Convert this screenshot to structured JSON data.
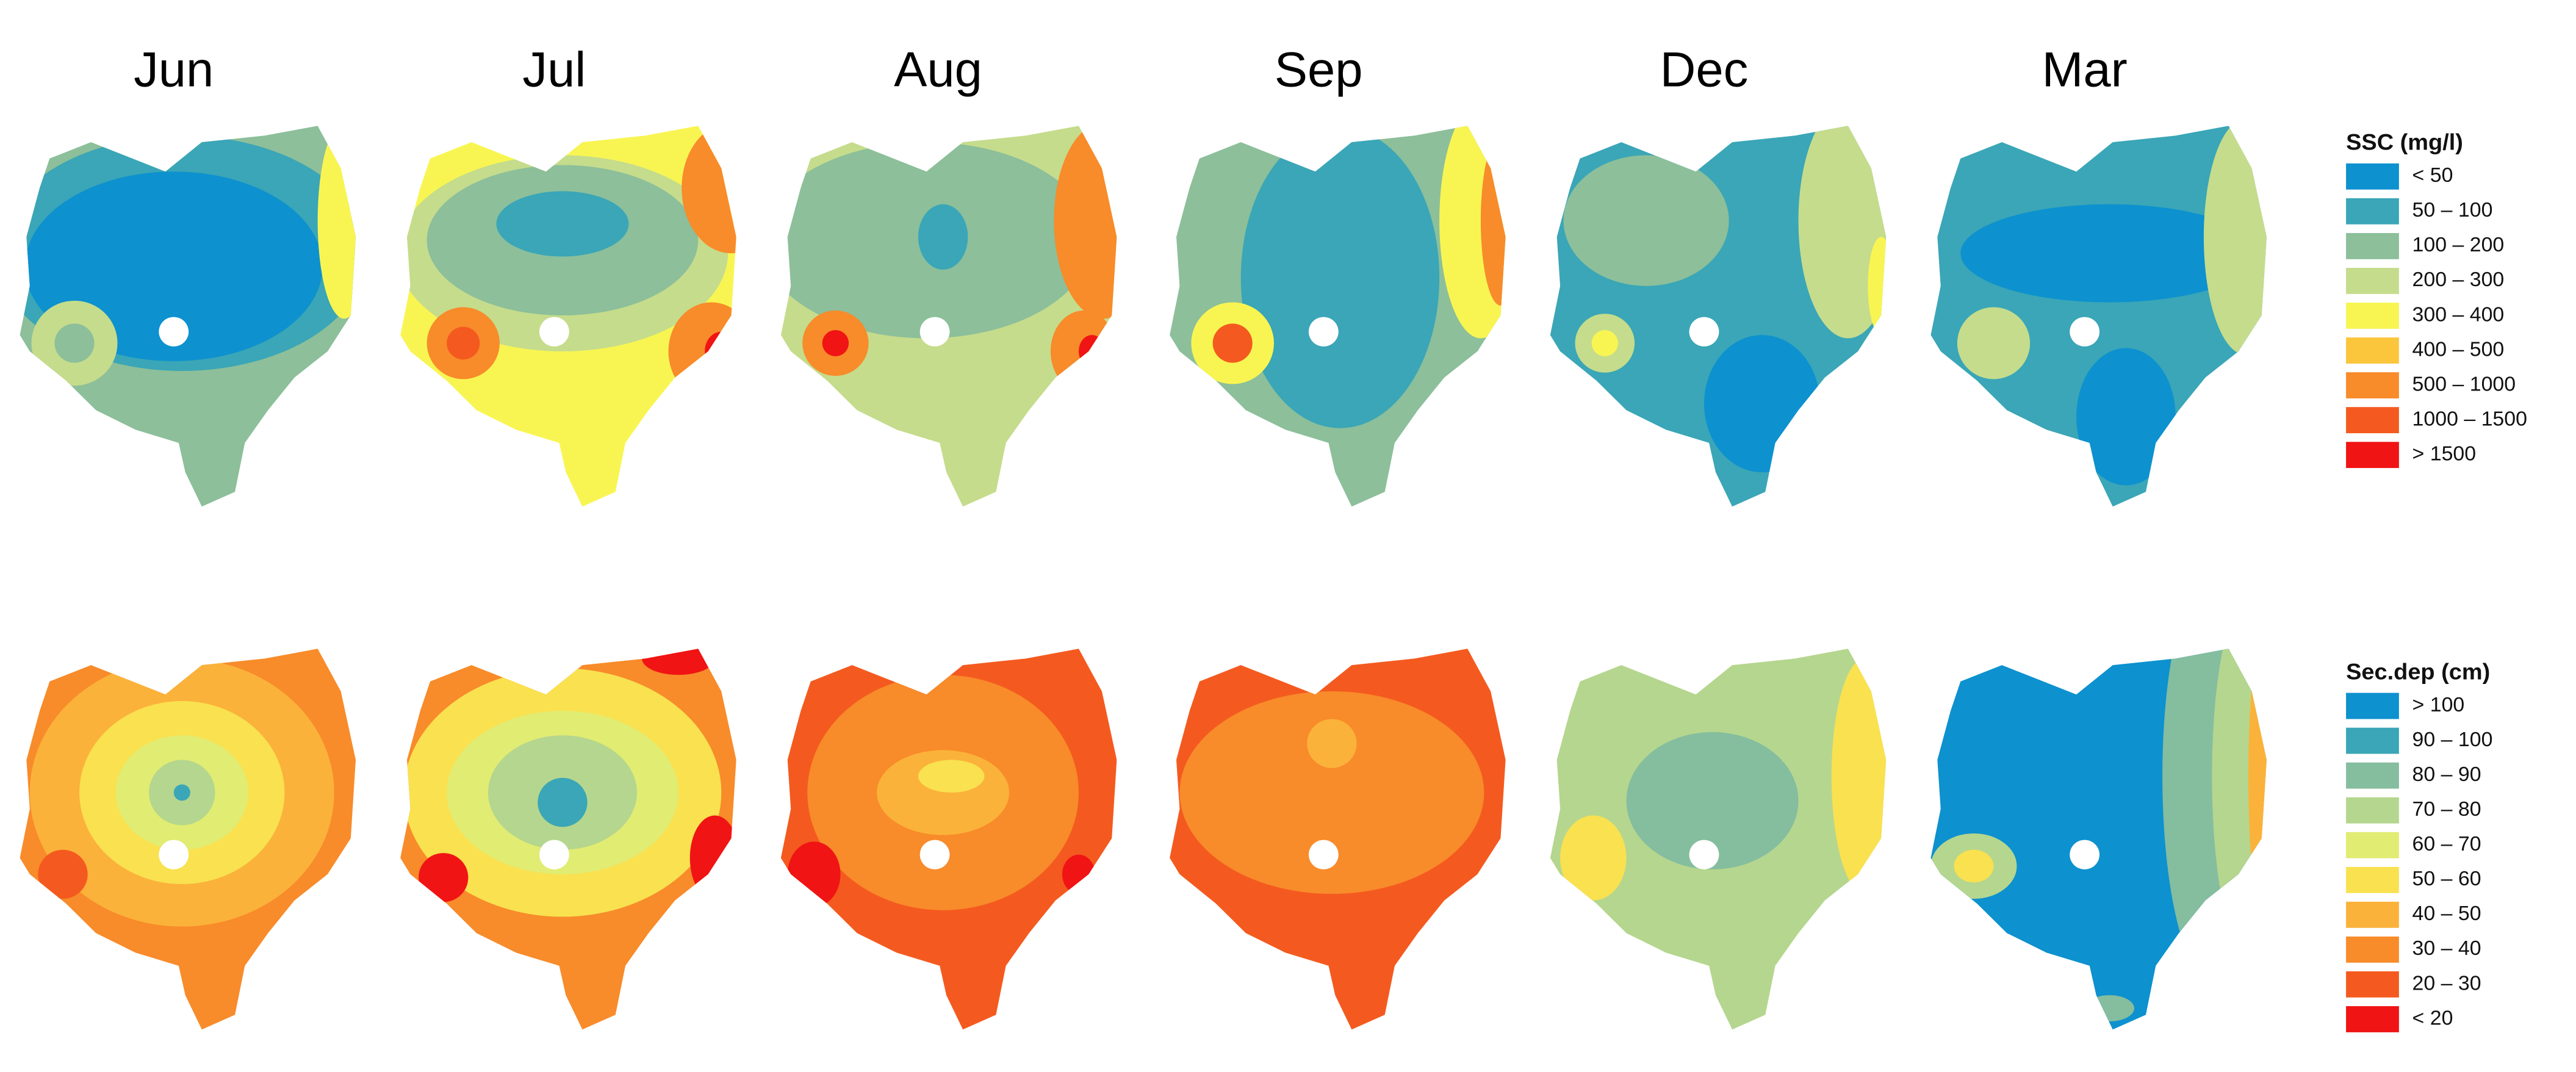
{
  "months": [
    "Jun",
    "Jul",
    "Aug",
    "Sep",
    "Dec",
    "Mar"
  ],
  "legends": [
    {
      "title": "SSC (mg/l)",
      "items": [
        {
          "label": "< 50",
          "color": "#0d91cf"
        },
        {
          "label": "50 – 100",
          "color": "#3aa6b7"
        },
        {
          "label": "100 – 200",
          "color": "#8cbf9a"
        },
        {
          "label": "200 – 300",
          "color": "#c5dc8c"
        },
        {
          "label": "300 – 400",
          "color": "#f8f552"
        },
        {
          "label": "400 – 500",
          "color": "#fbc63c"
        },
        {
          "label": "500 – 1000",
          "color": "#f88b2a"
        },
        {
          "label": "1000 – 1500",
          "color": "#f45a1f"
        },
        {
          "label": "> 1500",
          "color": "#f01414"
        }
      ]
    },
    {
      "title": "Sec.dep (cm)",
      "items": [
        {
          "label": "> 100",
          "color": "#0d91cf"
        },
        {
          "label": "90 – 100",
          "color": "#3aa6b7"
        },
        {
          "label": "80 – 90",
          "color": "#85bd9f"
        },
        {
          "label": "70 – 80",
          "color": "#b5d68e"
        },
        {
          "label": "60 – 70",
          "color": "#e1ec72"
        },
        {
          "label": "50 – 60",
          "color": "#f9e150"
        },
        {
          "label": "40 – 50",
          "color": "#fbb23a"
        },
        {
          "label": "30 – 40",
          "color": "#f88b2a"
        },
        {
          "label": "20 – 30",
          "color": "#f45a1f"
        },
        {
          "label": "<  20",
          "color": "#f01414"
        }
      ]
    }
  ]
}
